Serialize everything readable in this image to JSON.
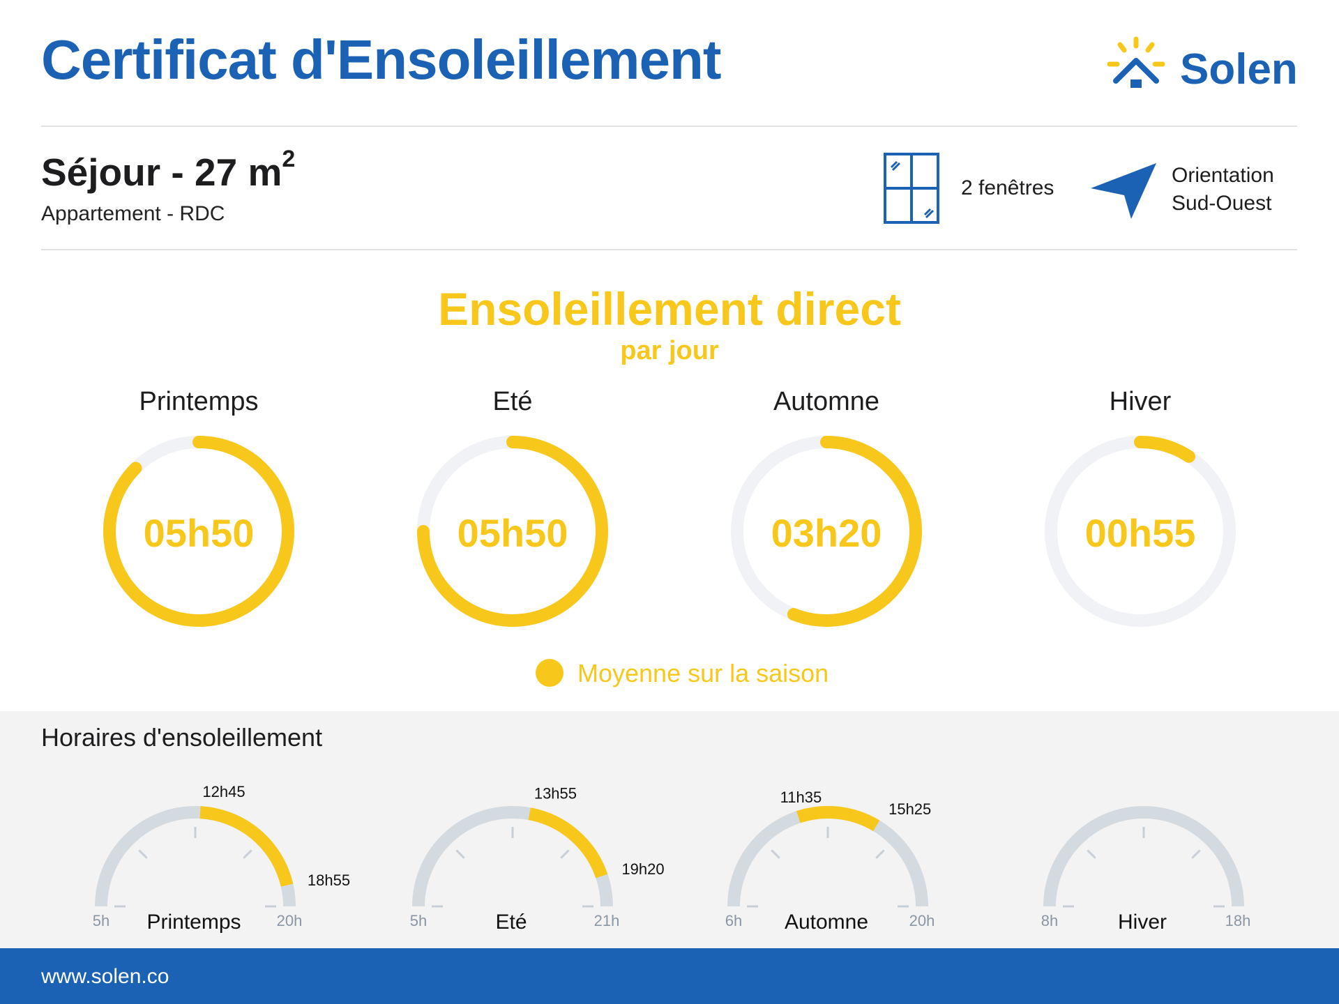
{
  "header": {
    "title": "Certificat d'Ensoleillement",
    "logo_text": "Solen",
    "brand_color": "#1b62b4",
    "accent_color": "#f7c81b"
  },
  "room": {
    "name": "Séjour - 27 m",
    "name_sup": "2",
    "subtitle": "Appartement - RDC",
    "windows": "2 fenêtres",
    "orientation_line1": "Orientation",
    "orientation_line2": "Sud-Ouest",
    "windows_icon": "window-icon",
    "orientation_icon": "navigation-arrow-icon"
  },
  "sunshine": {
    "title": "Ensoleillement direct",
    "subtitle": "par jour",
    "legend": "Moyenne sur la saison"
  },
  "hours_section": {
    "title": "Horaires d'ensoleillement"
  },
  "footer": {
    "url": "www.solen.co"
  },
  "chart_data": [
    {
      "type": "donut",
      "title": "Ensoleillement direct",
      "subtitle": "par jour",
      "unit": "hours per day",
      "series": [
        {
          "season": "Printemps",
          "label": "05h50",
          "value_hours": 5.833,
          "fraction": 0.875
        },
        {
          "season": "Eté",
          "label": "05h50",
          "value_hours": 5.833,
          "fraction": 0.75
        },
        {
          "season": "Automne",
          "label": "03h20",
          "value_hours": 3.333,
          "fraction": 0.56
        },
        {
          "season": "Hiver",
          "label": "00h55",
          "value_hours": 0.917,
          "fraction": 0.092
        }
      ],
      "legend": "Moyenne sur la saison"
    },
    {
      "type": "gauge",
      "title": "Horaires d'ensoleillement",
      "gauges": [
        {
          "season": "Printemps",
          "min_label": "5h",
          "max_label": "20h",
          "min": 5,
          "max": 20,
          "start_label": "12h45",
          "end_label": "18h55",
          "start": 12.75,
          "end": 18.917
        },
        {
          "season": "Eté",
          "min_label": "5h",
          "max_label": "21h",
          "min": 5,
          "max": 21,
          "start_label": "13h55",
          "end_label": "19h20",
          "start": 13.917,
          "end": 19.333
        },
        {
          "season": "Automne",
          "min_label": "6h",
          "max_label": "20h",
          "min": 6,
          "max": 20,
          "start_label": "11h35",
          "end_label": "15h25",
          "start": 11.583,
          "end": 15.417
        },
        {
          "season": "Hiver",
          "min_label": "8h",
          "max_label": "18h",
          "min": 8,
          "max": 18,
          "start_label": "",
          "end_label": "",
          "start": null,
          "end": null
        }
      ]
    }
  ]
}
